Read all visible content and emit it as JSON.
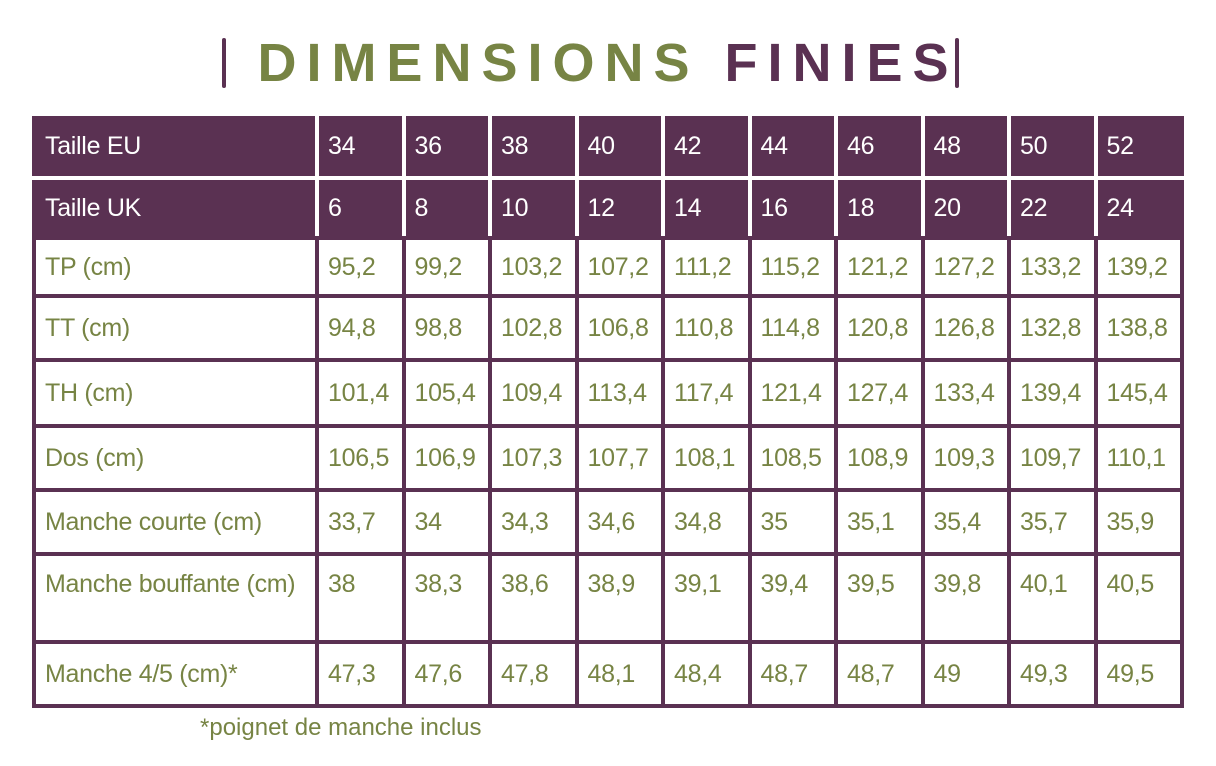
{
  "title": {
    "part1": "DIMENSIONS",
    "part2": "FINIES"
  },
  "colors": {
    "purple": "#5a3152",
    "green": "#778444"
  },
  "table": {
    "header_rows": [
      {
        "label": "Taille EU",
        "values": [
          "34",
          "36",
          "38",
          "40",
          "42",
          "44",
          "46",
          "48",
          "50",
          "52"
        ]
      },
      {
        "label": "Taille UK",
        "values": [
          "6",
          "8",
          "10",
          "12",
          "14",
          "16",
          "18",
          "20",
          "22",
          "24"
        ]
      }
    ],
    "rows": [
      {
        "label": "TP (cm)",
        "values": [
          "95,2",
          "99,2",
          "103,2",
          "107,2",
          "111,2",
          "115,2",
          "121,2",
          "127,2",
          "133,2",
          "139,2"
        ]
      },
      {
        "label": "TT (cm)",
        "values": [
          "94,8",
          "98,8",
          "102,8",
          "106,8",
          "110,8",
          "114,8",
          "120,8",
          "126,8",
          "132,8",
          "138,8"
        ]
      },
      {
        "label": "TH (cm)",
        "values": [
          "101,4",
          "105,4",
          "109,4",
          "113,4",
          "117,4",
          "121,4",
          "127,4",
          "133,4",
          "139,4",
          "145,4"
        ]
      },
      {
        "label": "Dos (cm)",
        "values": [
          "106,5",
          "106,9",
          "107,3",
          "107,7",
          "108,1",
          "108,5",
          "108,9",
          "109,3",
          "109,7",
          "110,1"
        ]
      },
      {
        "label": "Manche courte (cm)",
        "values": [
          "33,7",
          "34",
          "34,3",
          "34,6",
          "34,8",
          "35",
          "35,1",
          "35,4",
          "35,7",
          "35,9"
        ]
      },
      {
        "label": "Manche bouffante (cm)",
        "values": [
          "38",
          "38,3",
          "38,6",
          "38,9",
          "39,1",
          "39,4",
          "39,5",
          "39,8",
          "40,1",
          "40,5"
        ]
      },
      {
        "label": "Manche 4/5 (cm)*",
        "values": [
          "47,3",
          "47,6",
          "47,8",
          "48,1",
          "48,4",
          "48,7",
          "48,7",
          "49",
          "49,3",
          "49,5"
        ]
      }
    ]
  },
  "footnote": "*poignet de manche inclus"
}
